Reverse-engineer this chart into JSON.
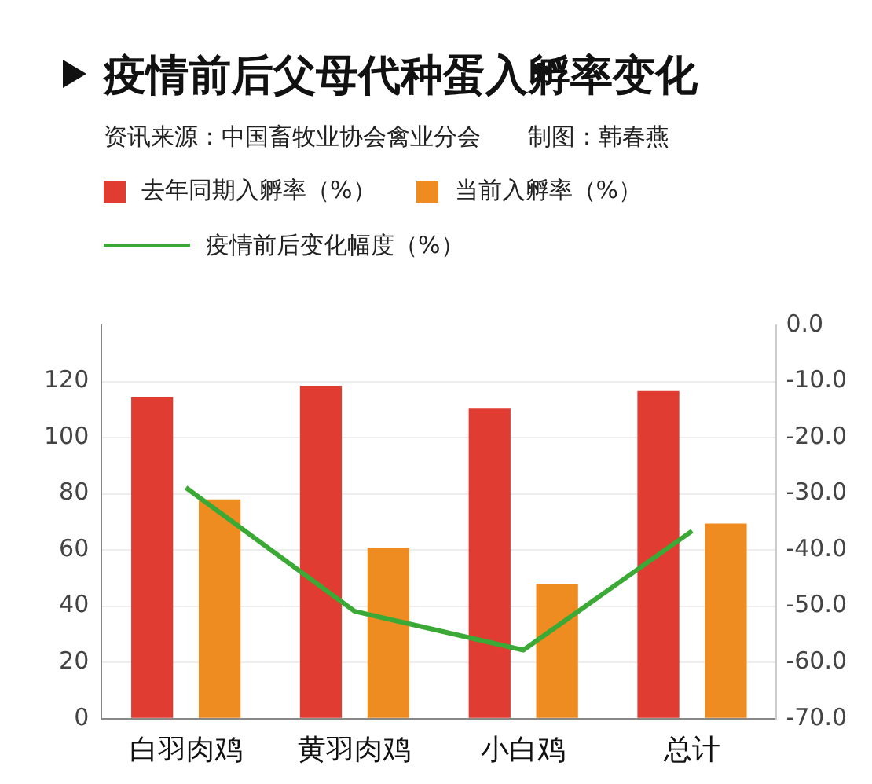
{
  "chart_data": {
    "type": "bar",
    "title": "疫情前后父母代种蛋入孵率变化",
    "subtitle": "资讯来源：中国畜牧业协会禽业分会　　制图：韩春燕",
    "categories": [
      "白羽肉鸡",
      "黄羽肉鸡",
      "小白鸡",
      "总计"
    ],
    "series": [
      {
        "name": "去年同期入孵率（%）",
        "color": "#e03c31",
        "values": [
          114.4,
          118.5,
          110.3,
          116.6
        ]
      },
      {
        "name": "当前入孵率（%）",
        "color": "#ee8c22",
        "values": [
          78,
          60.8,
          48,
          69.4
        ]
      },
      {
        "name": "疫情前后变化幅度（%）",
        "type": "line",
        "axis": "y2",
        "color": "#3aa935",
        "values": [
          -28.9,
          -50.9,
          -57.8,
          -36.6
        ]
      }
    ],
    "ylim": [
      0,
      140
    ],
    "yticks": [
      0,
      20,
      40,
      60,
      80,
      100,
      120
    ],
    "y2lim": [
      -70,
      0
    ],
    "y2ticks": [
      {
        "value": -70,
        "label": "-70.0"
      },
      {
        "value": -60,
        "label": "-60.0"
      },
      {
        "value": -50,
        "label": "-50.0"
      },
      {
        "value": -40,
        "label": "-40.0"
      },
      {
        "value": -30,
        "label": "-30.0"
      },
      {
        "value": -20,
        "label": "-20.0"
      },
      {
        "value": -10,
        "label": "-10.0"
      },
      {
        "value": 0,
        "label": "0.0"
      }
    ],
    "grid": "y",
    "legend": "top",
    "marker": "none"
  }
}
